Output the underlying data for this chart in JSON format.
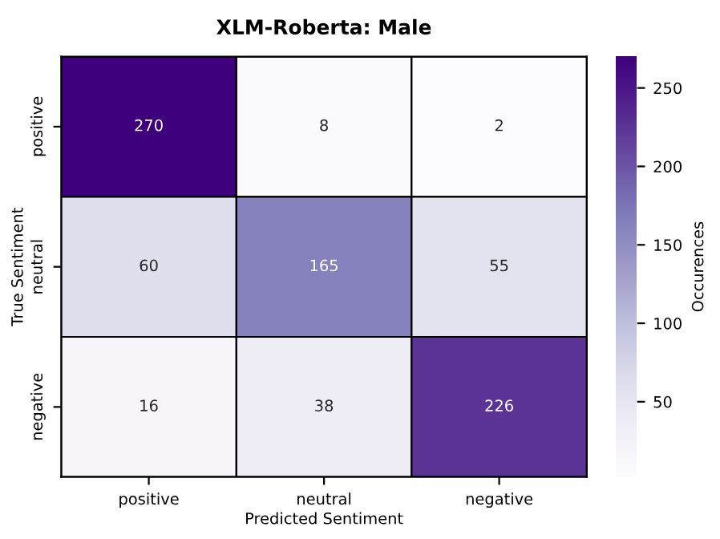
{
  "chart_data": {
    "type": "heatmap",
    "title": "XLM-Roberta: Male",
    "xlabel": "Predicted Sentiment",
    "ylabel": "True Sentiment",
    "clabel": "Occurences",
    "categories": [
      "positive",
      "neutral",
      "negative"
    ],
    "y_categories": [
      "positive",
      "neutral",
      "negative"
    ],
    "cells": [
      [
        270,
        8,
        2
      ],
      [
        60,
        165,
        55
      ],
      [
        16,
        38,
        226
      ]
    ],
    "data_labels": true,
    "clim": [
      2,
      270
    ],
    "cticks": [
      50,
      100,
      150,
      200,
      250
    ]
  }
}
